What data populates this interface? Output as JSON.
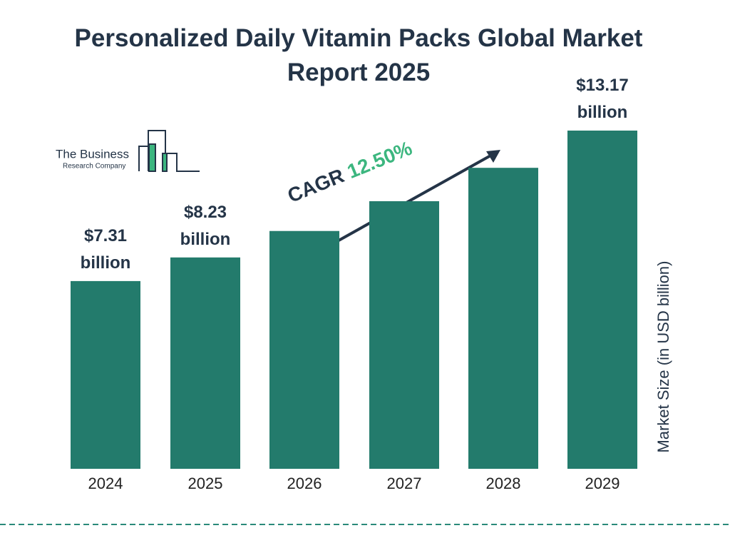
{
  "chart_data": {
    "type": "bar",
    "title": "Personalized Daily Vitamin Packs Global Market Report 2025",
    "categories": [
      "2024",
      "2025",
      "2026",
      "2027",
      "2028",
      "2029"
    ],
    "values": [
      7.31,
      8.23,
      9.26,
      10.42,
      11.72,
      13.17
    ],
    "value_labels": [
      "$7.31 billion",
      "$8.23 billion",
      null,
      null,
      null,
      "$13.17 billion"
    ],
    "color": "#237b6c",
    "y_label": "Market Size (in USD billion)",
    "annotation": {
      "label": "CAGR",
      "value": "12.50%"
    }
  },
  "logo": {
    "line1": "The Business",
    "line2": "Research Company"
  }
}
